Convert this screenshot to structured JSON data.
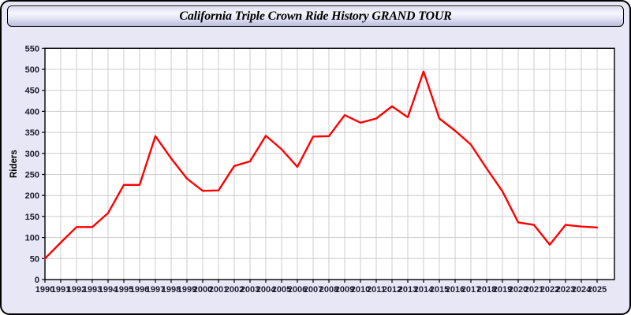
{
  "header": {
    "title": "California Triple Crown Ride History GRAND TOUR"
  },
  "chart_data": {
    "type": "line",
    "title": "California Triple Crown Ride History GRAND TOUR",
    "x": [
      1990,
      1991,
      1992,
      1993,
      1994,
      1995,
      1996,
      1997,
      1998,
      1999,
      2000,
      2001,
      2002,
      2003,
      2004,
      2005,
      2006,
      2007,
      2008,
      2009,
      2010,
      2011,
      2012,
      2013,
      2014,
      2015,
      2016,
      2017,
      2018,
      2019,
      2020,
      2021,
      2022,
      2023,
      2024,
      2025
    ],
    "series": [
      {
        "name": "Riders",
        "color": "#ff0000",
        "values": [
          50,
          88,
          125,
          125,
          158,
          225,
          225,
          341,
          288,
          240,
          211,
          212,
          270,
          281,
          342,
          310,
          268,
          340,
          341,
          391,
          373,
          383,
          412,
          386,
          495,
          383,
          354,
          321,
          264,
          210,
          136,
          130,
          83,
          130,
          126,
          124
        ]
      }
    ],
    "xlabel": "",
    "ylabel": "Riders",
    "ylim": [
      0,
      550
    ],
    "ytick_step": 50,
    "grid": true,
    "legend_position": "none",
    "plot_bg": "#ffffff",
    "grid_color": "#cccccc",
    "axis_color": "#000000",
    "tick_color": "#1c1c2e"
  },
  "colors": {
    "page_background": "#e7e7f6",
    "frame_border": "#000000",
    "title_bar_gradient_top": "#d9d9f0",
    "title_bar_gradient_bottom": "#bcbcdd",
    "series_red": "#ff0000"
  }
}
